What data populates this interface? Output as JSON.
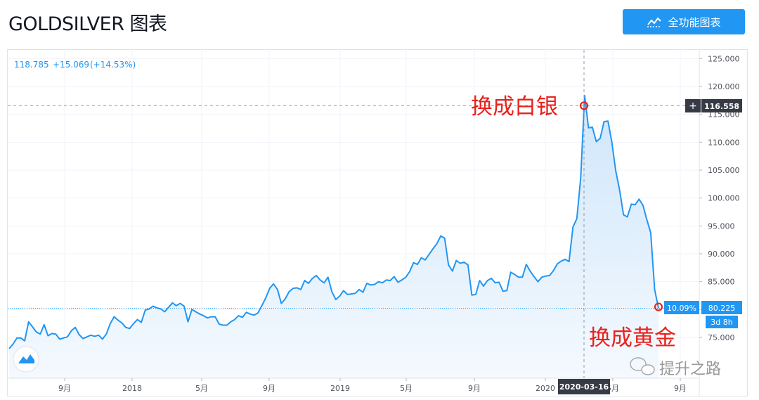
{
  "header": {
    "title": "GOLDSILVER 图表",
    "full_chart_label": "全功能图表"
  },
  "legend": {
    "value": "118.785",
    "change": "+15.069",
    "change_pct": "(+14.53%)"
  },
  "crosshair": {
    "price_label": "116.558",
    "date_label": "2020-03-16",
    "plus_glyph": "+"
  },
  "last_price": {
    "pct_label": "10.09%",
    "value_label": "80.225",
    "countdown_label": "3d 8h"
  },
  "annotations": {
    "switch_to_silver": "换成白银",
    "switch_to_gold": "换成黄金"
  },
  "watermark": {
    "text": "提升之路"
  },
  "colors": {
    "line": "#2196f3",
    "area_top": "#cfe6fb",
    "area_bottom": "#f4f9fe",
    "annotation_red": "#e8221d",
    "button_blue": "#2196f3",
    "axis_text": "#50535e",
    "grid": "#f0f3fa",
    "dark_label": "#363a45"
  },
  "chart_data": {
    "type": "area",
    "title": "GOLDSILVER",
    "ylim": [
      70,
      126
    ],
    "y_ticks": [
      "75.000",
      "80.000",
      "85.000",
      "90.000",
      "95.000",
      "100.000",
      "105.000",
      "110.000",
      "115.000",
      "120.000",
      "125.000"
    ],
    "x_tick_labels": [
      "9月",
      "2018",
      "5月",
      "9月",
      "2019",
      "5月",
      "9月",
      "2020",
      "5月",
      "9月"
    ],
    "grid": true,
    "series": [
      {
        "values": [
          73.0,
          73.8,
          74.9,
          74.9,
          74.4,
          77.8,
          76.9,
          76.0,
          75.6,
          77.3,
          75.3,
          75.7,
          75.6,
          74.7,
          74.9,
          75.1,
          76.2,
          76.8,
          75.5,
          74.8,
          75.1,
          75.4,
          75.2,
          75.4,
          74.7,
          75.6,
          77.5,
          78.7,
          78.1,
          77.6,
          76.8,
          76.6,
          77.5,
          78.2,
          77.7,
          79.9,
          80.1,
          80.6,
          80.3,
          80.1,
          79.6,
          80.4,
          81.2,
          80.7,
          81.1,
          80.6,
          77.8,
          80.0,
          79.6,
          79.2,
          78.9,
          78.5,
          78.7,
          78.7,
          77.4,
          77.2,
          77.2,
          77.8,
          78.2,
          78.9,
          78.6,
          79.5,
          79.2,
          79.0,
          79.4,
          80.7,
          82.1,
          83.8,
          84.6,
          83.6,
          81.1,
          81.9,
          83.2,
          83.8,
          83.9,
          83.6,
          85.2,
          84.7,
          85.6,
          86.1,
          85.3,
          84.8,
          85.8,
          83.2,
          81.8,
          82.4,
          83.4,
          82.7,
          82.8,
          82.9,
          83.6,
          83.1,
          84.7,
          84.4,
          84.5,
          85.0,
          84.8,
          85.3,
          85.2,
          85.9,
          84.9,
          85.3,
          85.8,
          86.8,
          88.4,
          88.1,
          89.3,
          88.9,
          89.9,
          90.9,
          91.8,
          93.2,
          92.8,
          88.0,
          86.9,
          88.8,
          88.3,
          88.5,
          88.0,
          82.6,
          82.7,
          85.2,
          84.2,
          85.2,
          85.6,
          84.8,
          84.9,
          83.3,
          83.4,
          86.7,
          86.3,
          85.8,
          85.8,
          88.1,
          86.9,
          85.9,
          85.0,
          85.8,
          86.0,
          86.1,
          87.0,
          88.2,
          88.7,
          89.0,
          88.6,
          94.8,
          96.3,
          103.6,
          118.4,
          112.6,
          112.7,
          110.1,
          110.7,
          113.7,
          113.8,
          110.0,
          104.9,
          101.4,
          97.0,
          96.6,
          98.9,
          98.8,
          99.8,
          98.7,
          96.1,
          93.8,
          83.6,
          80.225
        ]
      }
    ],
    "markers": [
      {
        "label": "换成白银",
        "value": 116.558,
        "date": "2020-03-16"
      },
      {
        "label": "换成黄金",
        "value": 80.225
      }
    ],
    "last_value": 80.225,
    "crosshair_value": 116.558,
    "crosshair_date": "2020-03-16"
  }
}
